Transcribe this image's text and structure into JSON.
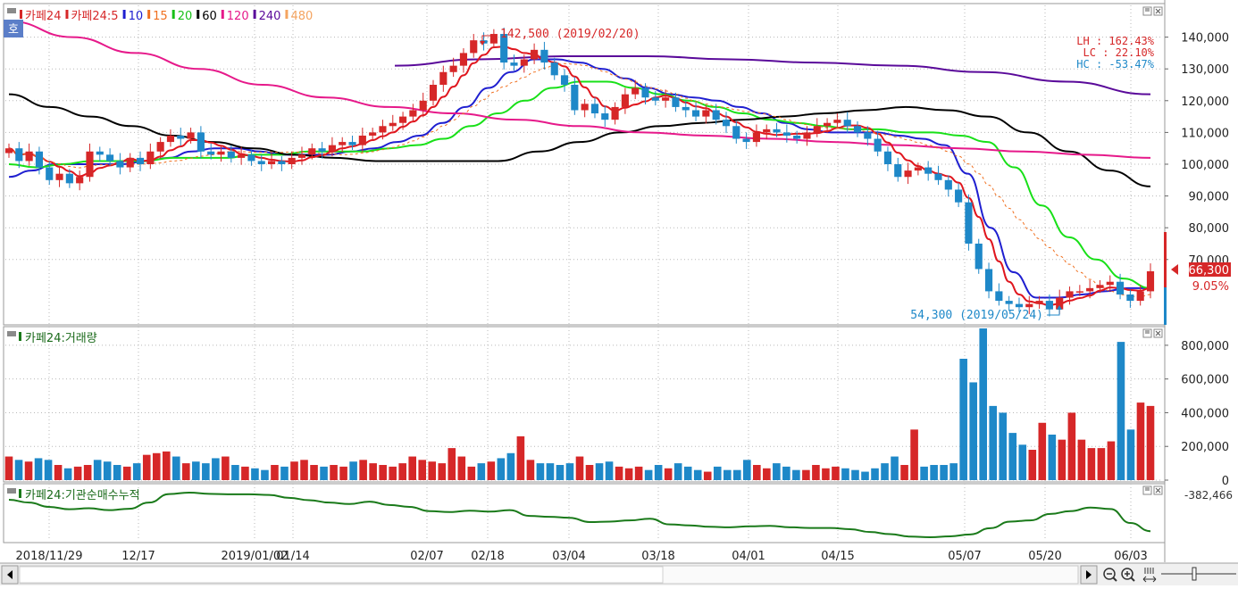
{
  "legend_main": [
    {
      "label": "카페24",
      "color": "#d62728"
    },
    {
      "label": "카페24:5",
      "color": "#d62728"
    },
    {
      "label": "10",
      "color": "#1f1fd0"
    },
    {
      "label": "15",
      "color": "#f07020"
    },
    {
      "label": "20",
      "color": "#18c018"
    },
    {
      "label": "60",
      "color": "#000000"
    },
    {
      "label": "120",
      "color": "#e6198a"
    },
    {
      "label": "240",
      "color": "#5a0a9a"
    },
    {
      "label": "480",
      "color": "#f4a460"
    }
  ],
  "ho_badge": "호",
  "stats": {
    "lh": "LH : 162.43%",
    "lc": "LC :  22.10%",
    "hc": "HC : -53.47%"
  },
  "annotations": {
    "high": "142,500 (2019/02/20)",
    "low": "54,300 (2019/05/24)",
    "price_tag": "66,300",
    "change_tag": "9.05%"
  },
  "volume_legend": "카페24:거래량",
  "inst_legend": "카페24:기관순매수누적",
  "inst_value": "-382,466",
  "colors": {
    "up": "#d62728",
    "down": "#1e88c8",
    "inst": "#1a7a1a",
    "grid": "#b8b8b8"
  },
  "chart_data": [
    {
      "type": "candlestick",
      "title": "",
      "ylim": [
        50000,
        150000
      ],
      "y_ticks": [
        "140,000",
        "130,000",
        "120,000",
        "110,000",
        "100,000",
        "90,000",
        "80,000",
        "70,000"
      ],
      "x_ticks": [
        "2018/11/29",
        "12/17",
        "2019/01/02",
        "01/14",
        "02/07",
        "02/18",
        "03/04",
        "03/18",
        "04/01",
        "04/15",
        "05/07",
        "05/20",
        "06/03"
      ],
      "closes": [
        105000,
        101000,
        104000,
        99000,
        95000,
        97000,
        94000,
        96000,
        104000,
        103000,
        101000,
        99000,
        102000,
        100000,
        104000,
        107000,
        109000,
        108000,
        110000,
        104000,
        103000,
        104000,
        102000,
        103000,
        101000,
        100000,
        101000,
        100000,
        102000,
        103000,
        105000,
        104000,
        106000,
        107000,
        106000,
        109000,
        110000,
        112000,
        113000,
        115000,
        117000,
        120000,
        125000,
        129000,
        131000,
        135000,
        139000,
        138000,
        141000,
        132000,
        131000,
        133000,
        136000,
        132000,
        128000,
        125000,
        117000,
        119000,
        116000,
        114000,
        118000,
        122000,
        124000,
        121000,
        120000,
        121000,
        118000,
        117000,
        115000,
        117000,
        114000,
        112000,
        108000,
        107000,
        110000,
        111000,
        110000,
        109000,
        108000,
        110000,
        112000,
        113000,
        114000,
        112000,
        110000,
        108000,
        104000,
        100000,
        96000,
        98000,
        99000,
        97000,
        95000,
        92000,
        88000,
        75000,
        67000,
        60000,
        57000,
        56000,
        55000,
        56000,
        57000,
        54300,
        58000,
        60000,
        60000,
        61000,
        62000,
        63000,
        59000,
        57000,
        60000,
        66300
      ],
      "series": [
        {
          "name": "10",
          "values": [
            96000,
            98000,
            100000,
            100000,
            100000,
            100000,
            101000,
            102000,
            104000,
            105000,
            105000,
            104000,
            103000,
            103000,
            103000,
            104000,
            105000,
            107000,
            109000,
            113000,
            118000,
            124000,
            129000,
            133000,
            133000,
            132000,
            130000,
            127000,
            124000,
            122000,
            121000,
            120000,
            118000,
            116000,
            113000,
            111000,
            110000,
            110000,
            110000,
            109000,
            108000,
            106000,
            97000,
            80000,
            66000,
            58000,
            58000,
            59000,
            60000,
            61000,
            61000
          ]
        },
        {
          "name": "20",
          "values": [
            100000,
            99000,
            100000,
            101000,
            101000,
            101000,
            102000,
            102000,
            102000,
            103000,
            103000,
            104000,
            104000,
            104000,
            105000,
            106000,
            108000,
            112000,
            116000,
            120000,
            124000,
            126000,
            126000,
            124000,
            122000,
            120000,
            118000,
            116000,
            114000,
            113000,
            112000,
            111000,
            111000,
            110000,
            110000,
            109000,
            107000,
            99000,
            87000,
            77000,
            70000,
            64000,
            61000
          ]
        },
        {
          "name": "60",
          "values": [
            122000,
            118000,
            115000,
            112000,
            109000,
            107000,
            105000,
            103000,
            102000,
            101000,
            101000,
            101000,
            101000,
            104000,
            107000,
            110000,
            112000,
            113000,
            114000,
            115000,
            116000,
            117000,
            118000,
            117000,
            115000,
            110000,
            104000,
            98000,
            93000
          ]
        },
        {
          "name": "120",
          "values": [
            145000,
            140000,
            135000,
            130000,
            125000,
            121000,
            118000,
            116000,
            114000,
            112000,
            110000,
            109000,
            108000,
            107000,
            106000,
            105000,
            104000,
            103000,
            102000
          ]
        },
        {
          "name": "240",
          "values": [
            131000,
            133000,
            134000,
            134000,
            133000,
            132000,
            131000,
            129000,
            126000,
            122000
          ]
        }
      ]
    },
    {
      "type": "bar",
      "title": "",
      "ylim": [
        0,
        900000
      ],
      "y_ticks": [
        "800,000",
        "600,000",
        "400,000",
        "200,000",
        "0"
      ],
      "values": [
        140000,
        120000,
        110000,
        130000,
        120000,
        90000,
        70000,
        80000,
        90000,
        120000,
        110000,
        90000,
        80000,
        100000,
        150000,
        160000,
        170000,
        140000,
        100000,
        110000,
        100000,
        130000,
        140000,
        90000,
        80000,
        70000,
        60000,
        90000,
        80000,
        110000,
        120000,
        90000,
        80000,
        90000,
        80000,
        110000,
        120000,
        100000,
        90000,
        80000,
        100000,
        140000,
        120000,
        110000,
        100000,
        190000,
        140000,
        80000,
        100000,
        110000,
        130000,
        160000,
        260000,
        120000,
        100000,
        100000,
        90000,
        100000,
        140000,
        90000,
        100000,
        110000,
        80000,
        70000,
        80000,
        60000,
        90000,
        70000,
        100000,
        80000,
        60000,
        50000,
        80000,
        60000,
        60000,
        120000,
        90000,
        70000,
        100000,
        80000,
        60000,
        60000,
        90000,
        70000,
        80000,
        70000,
        60000,
        50000,
        70000,
        100000,
        140000,
        90000,
        300000,
        80000,
        90000,
        90000,
        100000,
        720000,
        580000,
        900000,
        440000,
        400000,
        280000,
        210000,
        180000,
        340000,
        270000,
        240000,
        400000,
        240000,
        190000,
        190000,
        230000,
        820000,
        300000,
        460000,
        440000
      ]
    },
    {
      "type": "line",
      "title": "",
      "series": [
        {
          "name": "카페24:기관순매수누적",
          "values": [
            -250000,
            -262000,
            -280000,
            -290000,
            -286000,
            -294000,
            -288000,
            -262000,
            -226000,
            -220000,
            -225000,
            -227000,
            -227000,
            -230000,
            -242000,
            -252000,
            -262000,
            -268000,
            -258000,
            -272000,
            -280000,
            -298000,
            -302000,
            -296000,
            -300000,
            -294000,
            -318000,
            -322000,
            -326000,
            -344000,
            -342000,
            -337000,
            -330000,
            -354000,
            -358000,
            -364000,
            -366000,
            -362000,
            -360000,
            -366000,
            -369000,
            -369000,
            -374000,
            -386000,
            -395000,
            -405000,
            -408000,
            -404000,
            -396000,
            -370000,
            -342000,
            -337000,
            -310000,
            -298000,
            -283000,
            -289000,
            -348000,
            -382466
          ]
        }
      ]
    }
  ]
}
